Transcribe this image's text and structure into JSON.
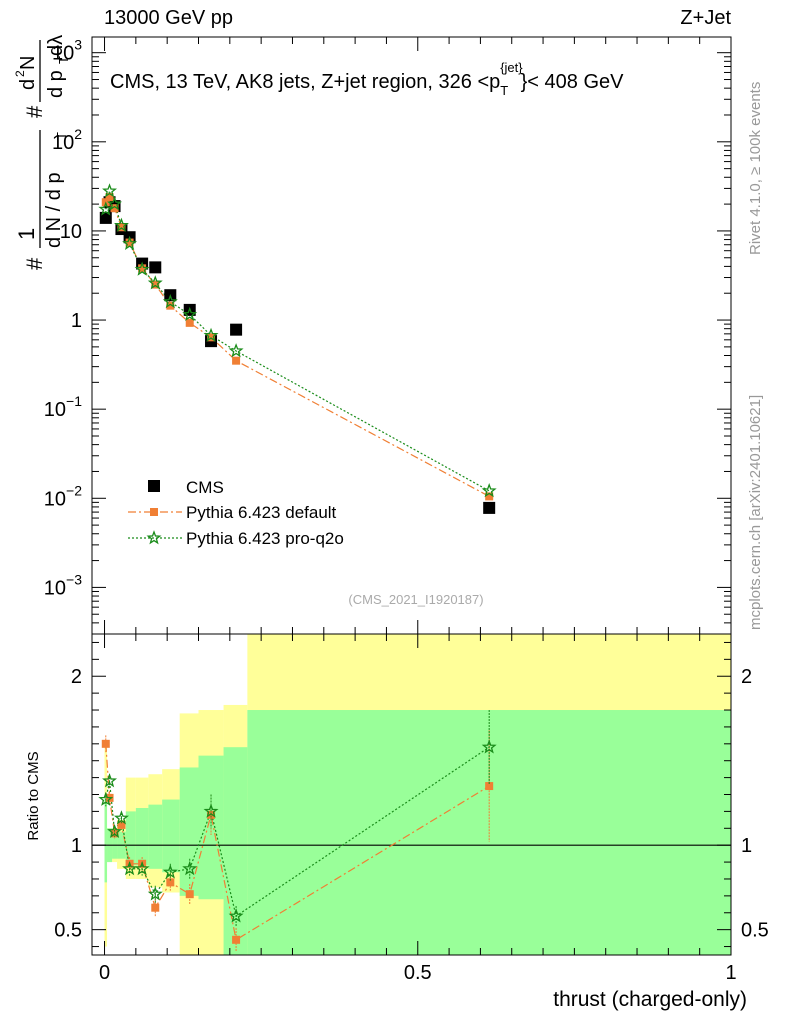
{
  "header": {
    "left": "13000 GeV pp",
    "right": "Z+Jet"
  },
  "side_text": {
    "top": "Rivet 4.1.0, ≥ 100k events",
    "bottom": "mcplots.cern.ch [arXiv:2401.10621]"
  },
  "colors": {
    "data": "#000000",
    "default": "#f07f34",
    "proq2o": "#1a8c1a",
    "band_yellow": "#ffff99",
    "band_green": "#99ff99"
  },
  "chart_data": [
    {
      "type": "scatter",
      "title": "CMS, 13 TeV, AK8 jets, Z+jet region, 326 <p_T^{jet}> < 408 GeV",
      "title_main": "CMS, 13 TeV, AK8 jets, Z+jet region, 326 <p",
      "title_sub": "T",
      "title_sup": "{jet}",
      "title_end": "}< 408 GeV",
      "ylabel": "1/N dN/dp_T d²N/dp_T dλ",
      "ylabel_parts": [
        "#",
        "1",
        "d N / d p",
        "T",
        "#",
        "d p",
        "T",
        "d",
        "2",
        "N",
        "dλ"
      ],
      "yscale": "log",
      "ylim": [
        0.0003,
        1500
      ],
      "xlim": [
        -0.02,
        1.0
      ],
      "y_ticks": [
        {
          "value": 0.001,
          "base": "10",
          "exp": "−3"
        },
        {
          "value": 0.01,
          "base": "10",
          "exp": "−2"
        },
        {
          "value": 0.1,
          "base": "10",
          "exp": "−1"
        },
        {
          "value": 1,
          "base": "1",
          "exp": ""
        },
        {
          "value": 10,
          "base": "10",
          "exp": ""
        },
        {
          "value": 100,
          "base": "10",
          "exp": "2"
        },
        {
          "value": 1000,
          "base": "10",
          "exp": "3"
        }
      ],
      "watermark": "(CMS_2021_I1920187)",
      "legend_position": "bottom-left",
      "series": [
        {
          "name": "CMS",
          "key": "cms",
          "x": [
            0.002,
            0.008,
            0.016,
            0.027,
            0.04,
            0.06,
            0.081,
            0.105,
            0.136,
            0.17,
            0.21,
            0.614
          ],
          "y": [
            14,
            21,
            19,
            10.5,
            8.5,
            4.3,
            3.9,
            1.9,
            1.3,
            0.58,
            0.78,
            0.0078
          ]
        },
        {
          "name": "Pythia 6.423 default",
          "key": "default",
          "x": [
            0.002,
            0.008,
            0.016,
            0.027,
            0.04,
            0.06,
            0.081,
            0.105,
            0.136,
            0.17,
            0.21,
            0.614
          ],
          "y": [
            21,
            24,
            18,
            11,
            7.4,
            3.8,
            2.5,
            1.45,
            0.93,
            0.64,
            0.35,
            0.0105
          ]
        },
        {
          "name": "Pythia 6.423 pro-q2o",
          "key": "proq2o",
          "x": [
            0.002,
            0.008,
            0.016,
            0.027,
            0.04,
            0.06,
            0.081,
            0.105,
            0.136,
            0.17,
            0.21,
            0.614
          ],
          "y": [
            17.5,
            28,
            20,
            11.5,
            7.2,
            3.7,
            2.6,
            1.6,
            1.15,
            0.67,
            0.45,
            0.0121
          ]
        }
      ]
    },
    {
      "type": "scatter",
      "xlabel": "thrust (charged-only)",
      "ylabel": "Ratio to CMS",
      "ylim": [
        0.35,
        2.25
      ],
      "xlim": [
        -0.02,
        1.0
      ],
      "x_ticks": [
        {
          "value": 0,
          "label": "0"
        },
        {
          "value": 0.5,
          "label": "0.5"
        },
        {
          "value": 1,
          "label": "1"
        }
      ],
      "y_ticks": [
        {
          "value": 0.5,
          "label": "0.5"
        },
        {
          "value": 1,
          "label": "1"
        },
        {
          "value": 2,
          "label": "2"
        }
      ],
      "bands": [
        {
          "x0": 0.0,
          "x1": 0.004,
          "yellow": [
            0.4,
            1.62
          ],
          "green": [
            0.78,
            1.3
          ]
        },
        {
          "x0": 0.004,
          "x1": 0.012,
          "yellow": [
            0.9,
            1.1
          ],
          "green": [
            0.9,
            1.1
          ]
        },
        {
          "x0": 0.012,
          "x1": 0.02,
          "yellow": [
            0.9,
            1.1
          ],
          "green": [
            0.92,
            1.08
          ]
        },
        {
          "x0": 0.02,
          "x1": 0.034,
          "yellow": [
            0.86,
            1.15
          ],
          "green": [
            0.92,
            1.08
          ]
        },
        {
          "x0": 0.034,
          "x1": 0.05,
          "yellow": [
            0.8,
            1.4
          ],
          "green": [
            0.88,
            1.2
          ]
        },
        {
          "x0": 0.05,
          "x1": 0.07,
          "yellow": [
            0.8,
            1.4
          ],
          "green": [
            0.88,
            1.22
          ]
        },
        {
          "x0": 0.07,
          "x1": 0.092,
          "yellow": [
            0.75,
            1.42
          ],
          "green": [
            0.86,
            1.24
          ]
        },
        {
          "x0": 0.092,
          "x1": 0.12,
          "yellow": [
            0.72,
            1.45
          ],
          "green": [
            0.84,
            1.27
          ]
        },
        {
          "x0": 0.12,
          "x1": 0.15,
          "yellow": [
            0.35,
            1.78
          ],
          "green": [
            0.7,
            1.46
          ]
        },
        {
          "x0": 0.15,
          "x1": 0.19,
          "yellow": [
            0.35,
            1.8
          ],
          "green": [
            0.68,
            1.53
          ]
        },
        {
          "x0": 0.19,
          "x1": 0.228,
          "yellow": [
            0.35,
            1.83
          ],
          "green": [
            0.35,
            1.58
          ]
        },
        {
          "x0": 0.228,
          "x1": 1.0,
          "yellow": [
            0.35,
            2.25
          ],
          "green": [
            0.35,
            1.8
          ]
        }
      ],
      "reference_line": 1,
      "series": [
        {
          "name": "Pythia 6.423 default",
          "key": "default",
          "x": [
            0.002,
            0.008,
            0.016,
            0.027,
            0.04,
            0.06,
            0.081,
            0.105,
            0.136,
            0.17,
            0.21,
            0.614
          ],
          "y": [
            1.6,
            1.28,
            1.07,
            1.12,
            0.89,
            0.89,
            0.63,
            0.78,
            0.71,
            1.18,
            0.44,
            1.35
          ],
          "err": [
            0.05,
            0.04,
            0.03,
            0.03,
            0.04,
            0.04,
            0.05,
            0.05,
            0.06,
            0.12,
            0.07,
            0.33
          ]
        },
        {
          "name": "Pythia 6.423 pro-q2o",
          "key": "proq2o",
          "x": [
            0.002,
            0.008,
            0.016,
            0.027,
            0.04,
            0.06,
            0.081,
            0.105,
            0.136,
            0.17,
            0.21,
            0.614
          ],
          "y": [
            1.27,
            1.38,
            1.08,
            1.16,
            0.86,
            0.86,
            0.71,
            0.84,
            0.86,
            1.2,
            0.58,
            1.58
          ],
          "err": [
            0.04,
            0.04,
            0.03,
            0.03,
            0.04,
            0.04,
            0.05,
            0.05,
            0.06,
            0.1,
            0.06,
            0.22
          ]
        }
      ]
    }
  ]
}
